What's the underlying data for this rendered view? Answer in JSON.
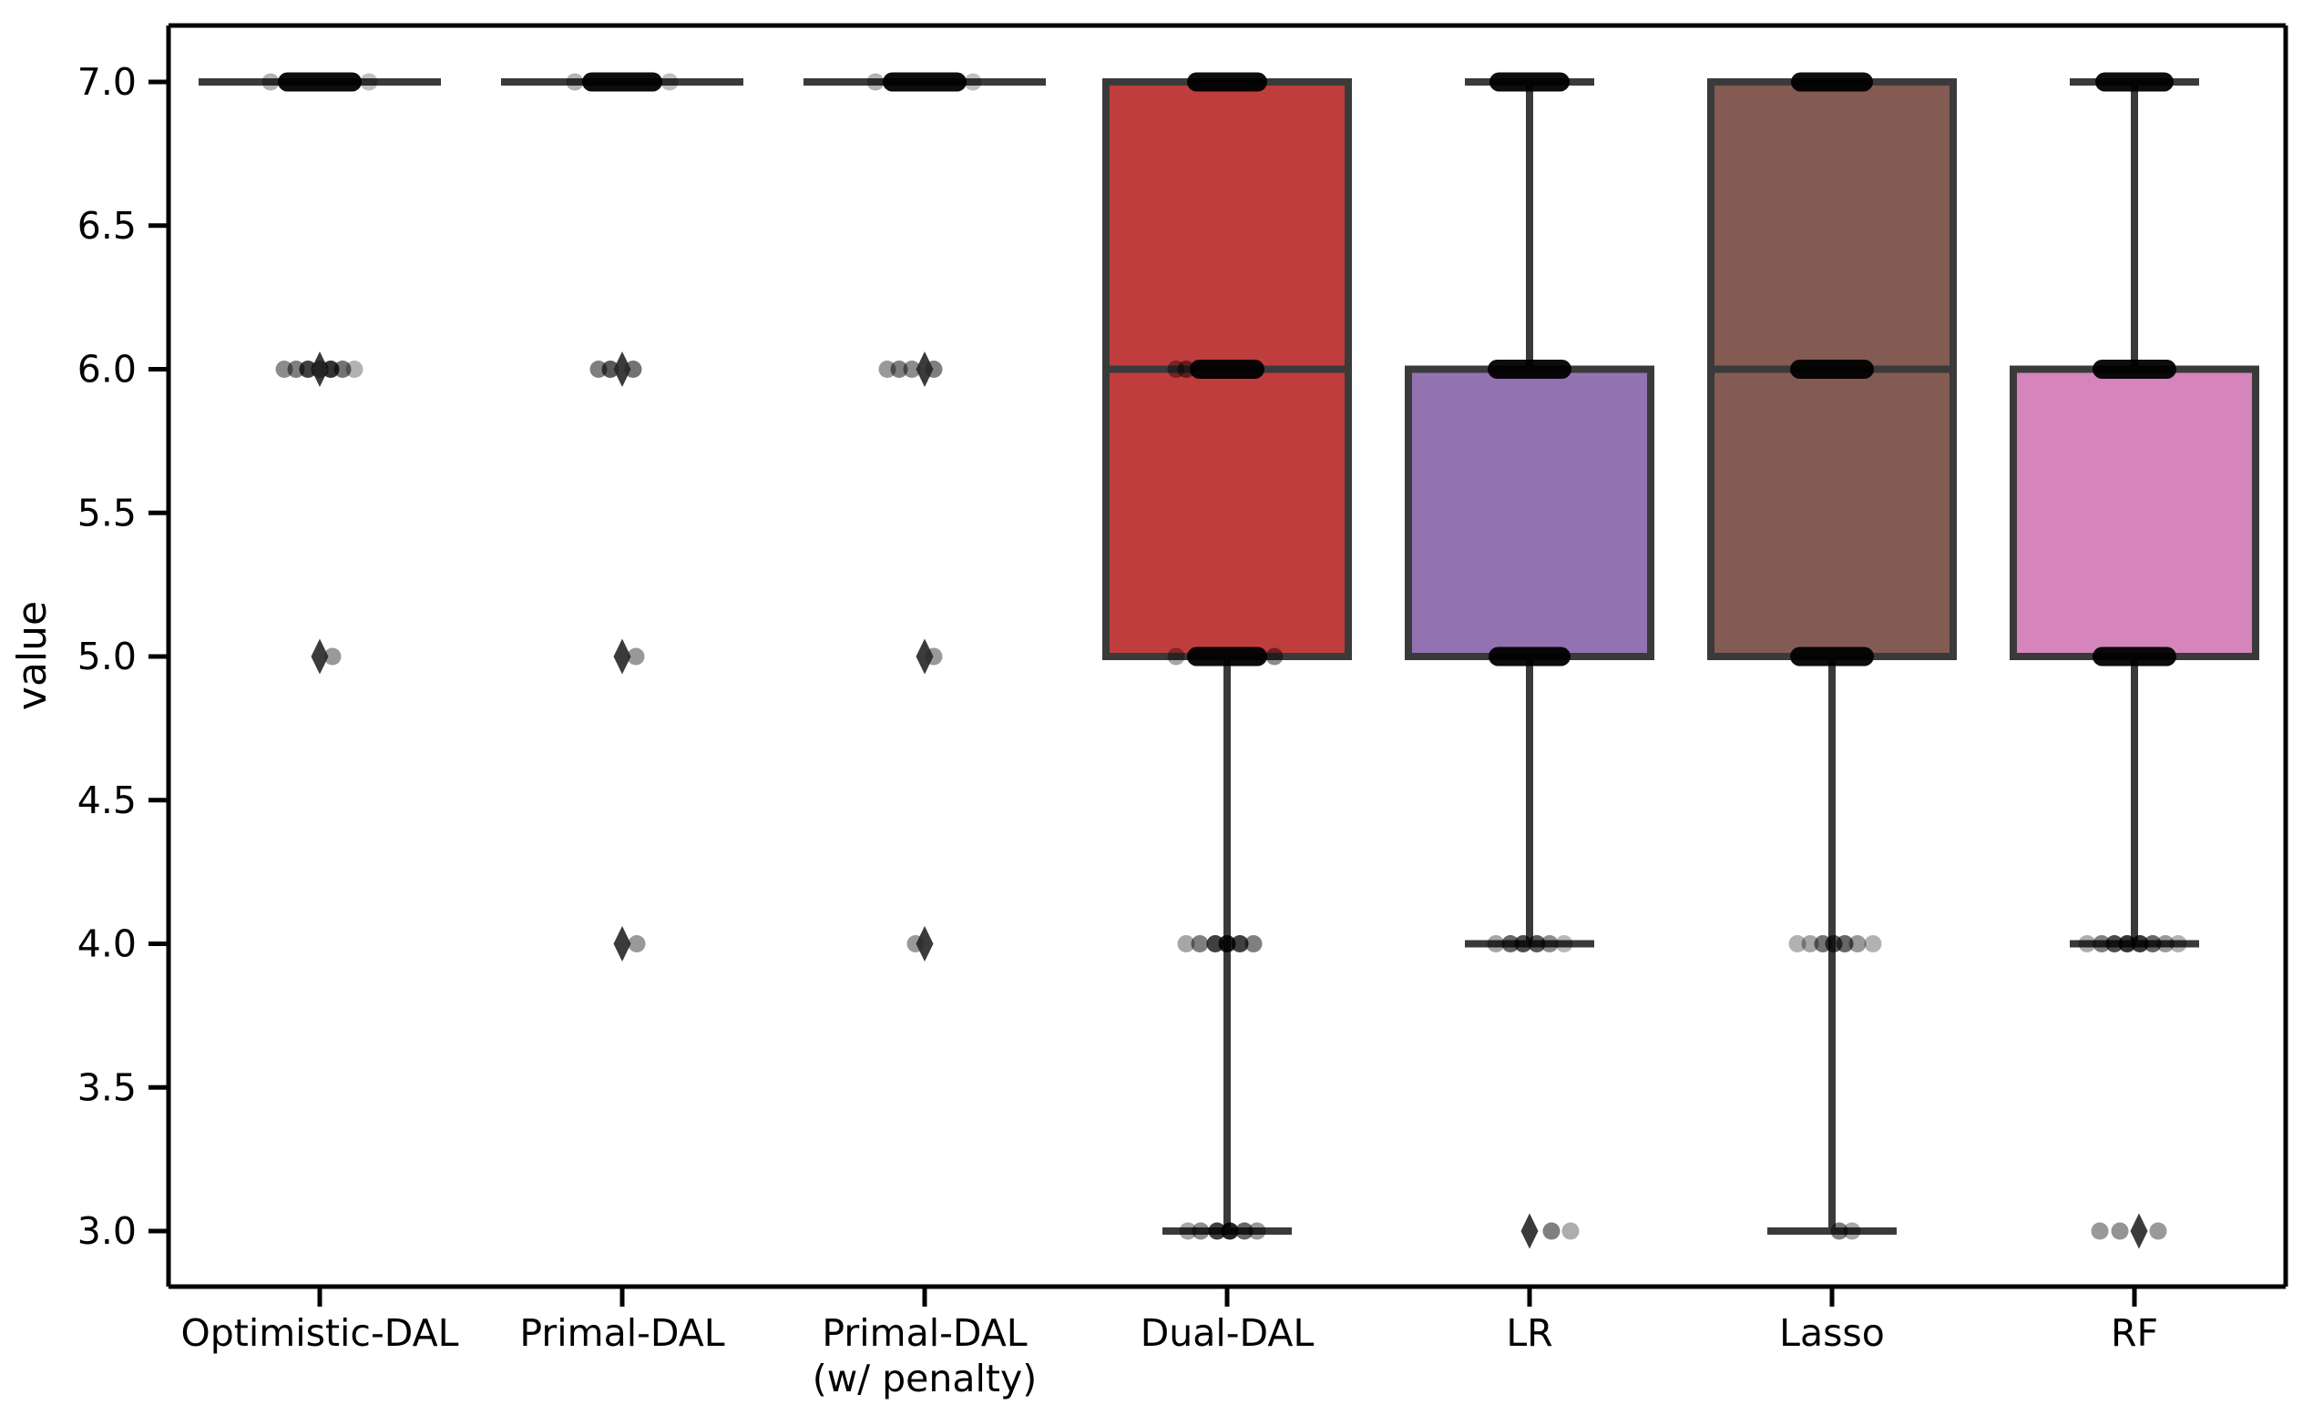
{
  "chart_data": {
    "type": "box",
    "title": "",
    "xlabel": "",
    "ylabel": "value",
    "ylim": [
      2.8,
      7.2
    ],
    "grid": false,
    "legend": "none",
    "yticks": [
      {
        "v": 7.0,
        "label": "7.0"
      },
      {
        "v": 6.5,
        "label": "6.5"
      },
      {
        "v": 6.0,
        "label": "6.0"
      },
      {
        "v": 5.5,
        "label": "5.5"
      },
      {
        "v": 5.0,
        "label": "5.0"
      },
      {
        "v": 4.5,
        "label": "4.5"
      },
      {
        "v": 4.0,
        "label": "4.0"
      },
      {
        "v": 3.5,
        "label": "3.5"
      },
      {
        "v": 3.0,
        "label": "3.0"
      }
    ],
    "colors": {
      "spine": "#000000",
      "box_edge": "#3a3a3a",
      "strip_point": "#000000",
      "flier": "#262626",
      "dual_dal": "#c03d3d",
      "lr": "#9372b2",
      "lasso": "#845b53",
      "rf": "#d585bc"
    },
    "categories": [
      {
        "label_lines": [
          "Optimistic-DAL"
        ],
        "color": null,
        "box": {
          "collapsed_at": 7
        },
        "fliers": [
          {
            "v": 6,
            "dx": 0
          },
          {
            "v": 5,
            "dx": 0
          }
        ],
        "strip": [
          {
            "v": 7,
            "pill": 92,
            "dots": [
              [
                -54,
                0.3
              ],
              [
                54,
                0.25
              ]
            ]
          },
          {
            "v": 6,
            "dots": [
              [
                -39,
                0.45
              ],
              [
                -26,
                0.5
              ],
              [
                -13,
                0.75
              ],
              [
                0,
                0.85
              ],
              [
                12,
                0.8
              ],
              [
                25,
                0.55
              ],
              [
                38,
                0.3
              ]
            ]
          },
          {
            "v": 5,
            "dots": [
              [
                14,
                0.4
              ]
            ]
          }
        ]
      },
      {
        "label_lines": [
          "Primal-DAL"
        ],
        "color": null,
        "box": {
          "collapsed_at": 7
        },
        "fliers": [
          {
            "v": 6,
            "dx": 0
          },
          {
            "v": 5,
            "dx": 0
          },
          {
            "v": 4,
            "dx": 0
          }
        ],
        "strip": [
          {
            "v": 7,
            "pill": 88,
            "dots": [
              [
                -52,
                0.3
              ],
              [
                52,
                0.25
              ]
            ]
          },
          {
            "v": 6,
            "dots": [
              [
                -26,
                0.5
              ],
              [
                -13,
                0.65
              ],
              [
                12,
                0.55
              ]
            ]
          },
          {
            "v": 5,
            "dots": [
              [
                15,
                0.4
              ]
            ]
          },
          {
            "v": 4,
            "dots": [
              [
                16,
                0.4
              ]
            ]
          }
        ]
      },
      {
        "label_lines": [
          "Primal-DAL",
          "(w/ penalty)"
        ],
        "color": null,
        "box": {
          "collapsed_at": 7
        },
        "fliers": [
          {
            "v": 6,
            "dx": 0
          },
          {
            "v": 5,
            "dx": 0
          },
          {
            "v": 4,
            "dx": 0
          }
        ],
        "strip": [
          {
            "v": 7,
            "pill": 92,
            "dots": [
              [
                -54,
                0.3
              ],
              [
                53,
                0.25
              ]
            ]
          },
          {
            "v": 6,
            "dots": [
              [
                -41,
                0.4
              ],
              [
                -28,
                0.5
              ],
              [
                -14,
                0.45
              ],
              [
                10,
                0.5
              ]
            ]
          },
          {
            "v": 5,
            "dots": [
              [
                10,
                0.4
              ]
            ]
          },
          {
            "v": 4,
            "dots": [
              [
                -10,
                0.4
              ]
            ]
          }
        ]
      },
      {
        "label_lines": [
          "Dual-DAL"
        ],
        "color": "#c03d3d",
        "box": {
          "q1": 5,
          "median": 6,
          "q3": 7,
          "whisker_low": 3,
          "whisker_high": 7,
          "caps": [
            3
          ]
        },
        "fliers": [],
        "strip": [
          {
            "v": 7,
            "pill": 88
          },
          {
            "v": 6,
            "pill": 82,
            "dots": [
              [
                -56,
                0.4
              ],
              [
                -45,
                0.5
              ]
            ]
          },
          {
            "v": 5,
            "pill": 88,
            "dots": [
              [
                -56,
                0.35
              ],
              [
                52,
                0.45
              ]
            ]
          },
          {
            "v": 4,
            "dots": [
              [
                -45,
                0.35
              ],
              [
                -30,
                0.5
              ],
              [
                -13,
                0.75
              ],
              [
                0,
                0.85
              ],
              [
                14,
                0.75
              ],
              [
                29,
                0.5
              ]
            ]
          },
          {
            "v": 3,
            "dots": [
              [
                -43,
                0.35
              ],
              [
                -29,
                0.45
              ],
              [
                -11,
                0.75
              ],
              [
                3,
                0.85
              ],
              [
                19,
                0.6
              ],
              [
                33,
                0.4
              ]
            ]
          }
        ]
      },
      {
        "label_lines": [
          "LR"
        ],
        "color": "#9372b2",
        "box": {
          "q1": 5,
          "median": 6,
          "q3": 6,
          "whisker_low": 4,
          "whisker_high": 7,
          "caps": [
            4,
            7
          ]
        },
        "fliers": [
          {
            "v": 3,
            "dx": 0
          }
        ],
        "strip": [
          {
            "v": 7,
            "pill": 88
          },
          {
            "v": 6,
            "pill": 92
          },
          {
            "v": 5,
            "pill": 90
          },
          {
            "v": 4,
            "dots": [
              [
                -37,
                0.35
              ],
              [
                -21,
                0.6
              ],
              [
                -7,
                0.7
              ],
              [
                8,
                0.65
              ],
              [
                22,
                0.45
              ],
              [
                38,
                0.28
              ]
            ]
          },
          {
            "v": 3,
            "dots": [
              [
                24,
                0.5
              ],
              [
                45,
                0.32
              ]
            ]
          }
        ]
      },
      {
        "label_lines": [
          "Lasso"
        ],
        "color": "#845b53",
        "box": {
          "q1": 5,
          "median": 6,
          "q3": 7,
          "whisker_low": 3,
          "whisker_high": 7,
          "caps": [
            3
          ]
        },
        "fliers": [],
        "strip": [
          {
            "v": 7,
            "pill": 90
          },
          {
            "v": 6,
            "pill": 92
          },
          {
            "v": 5,
            "pill": 92
          },
          {
            "v": 4,
            "dots": [
              [
                -38,
                0.3
              ],
              [
                -24,
                0.35
              ],
              [
                -10,
                0.55
              ],
              [
                2,
                0.65
              ],
              [
                14,
                0.6
              ],
              [
                28,
                0.4
              ],
              [
                45,
                0.3
              ]
            ]
          },
          {
            "v": 3,
            "dots": [
              [
                8,
                0.5
              ],
              [
                22,
                0.35
              ]
            ]
          }
        ]
      },
      {
        "label_lines": [
          "RF"
        ],
        "color": "#d585bc",
        "box": {
          "q1": 5,
          "median": 6,
          "q3": 6,
          "whisker_low": 4,
          "whisker_high": 7,
          "caps": [
            4,
            7
          ]
        },
        "fliers": [
          {
            "v": 3,
            "dx": 5
          }
        ],
        "strip": [
          {
            "v": 7,
            "pill": 86
          },
          {
            "v": 6,
            "pill": 92
          },
          {
            "v": 5,
            "pill": 92
          },
          {
            "v": 4,
            "dots": [
              [
                -52,
                0.32
              ],
              [
                -36,
                0.5
              ],
              [
                -22,
                0.7
              ],
              [
                -8,
                0.8
              ],
              [
                6,
                0.78
              ],
              [
                20,
                0.6
              ],
              [
                34,
                0.4
              ],
              [
                48,
                0.3
              ]
            ]
          },
          {
            "v": 3,
            "dots": [
              [
                -38,
                0.4
              ],
              [
                -16,
                0.42
              ],
              [
                26,
                0.4
              ]
            ]
          }
        ]
      }
    ]
  }
}
